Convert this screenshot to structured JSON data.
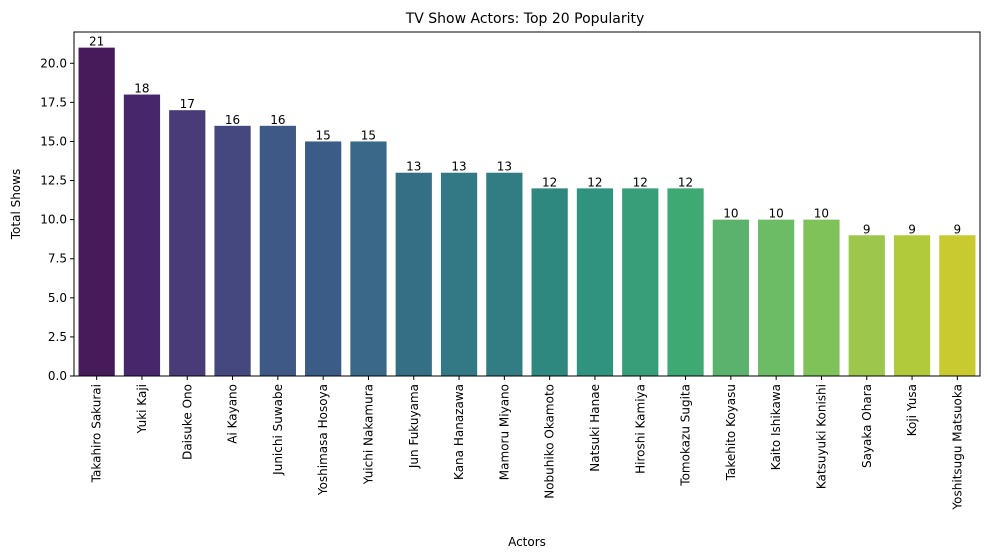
{
  "chart_data": {
    "type": "bar",
    "title": "TV Show Actors: Top 20 Popularity",
    "xlabel": "Actors",
    "ylabel": "Total Shows",
    "ylim": [
      0,
      22
    ],
    "yticks": [
      "0.0",
      "2.5",
      "5.0",
      "7.5",
      "10.0",
      "12.5",
      "15.0",
      "17.5",
      "20.0"
    ],
    "grid": false,
    "categories": [
      "Takahiro Sakurai",
      "Yuki Kaji",
      "Daisuke Ono",
      "Ai Kayano",
      "Junichi Suwabe",
      "Yoshimasa Hosoya",
      "Yuichi Nakamura",
      "Jun Fukuyama",
      "Kana Hanazawa",
      "Mamoru Miyano",
      "Nobuhiko Okamoto",
      "Natsuki Hanae",
      "Hiroshi Kamiya",
      "Tomokazu Sugita",
      "Takehito Koyasu",
      "Kaito Ishikawa",
      "Katsuyuki Konishi",
      "Sayaka Ohara",
      "Koji Yusa",
      "Yoshitsugu Matsuoka"
    ],
    "values": [
      21,
      18,
      17,
      16,
      16,
      15,
      15,
      13,
      13,
      13,
      12,
      12,
      12,
      12,
      10,
      10,
      10,
      9,
      9,
      9
    ],
    "colors": [
      "#471a5a",
      "#48266b",
      "#483b78",
      "#45477f",
      "#3f5986",
      "#3b5c86",
      "#3a6888",
      "#356f86",
      "#337885",
      "#327d84",
      "#2e8880",
      "#309380",
      "#379e79",
      "#3ea973",
      "#5ab26d",
      "#6bbc64",
      "#80c25a",
      "#9cc64c",
      "#b1ca3c",
      "#c8ca2f"
    ]
  }
}
